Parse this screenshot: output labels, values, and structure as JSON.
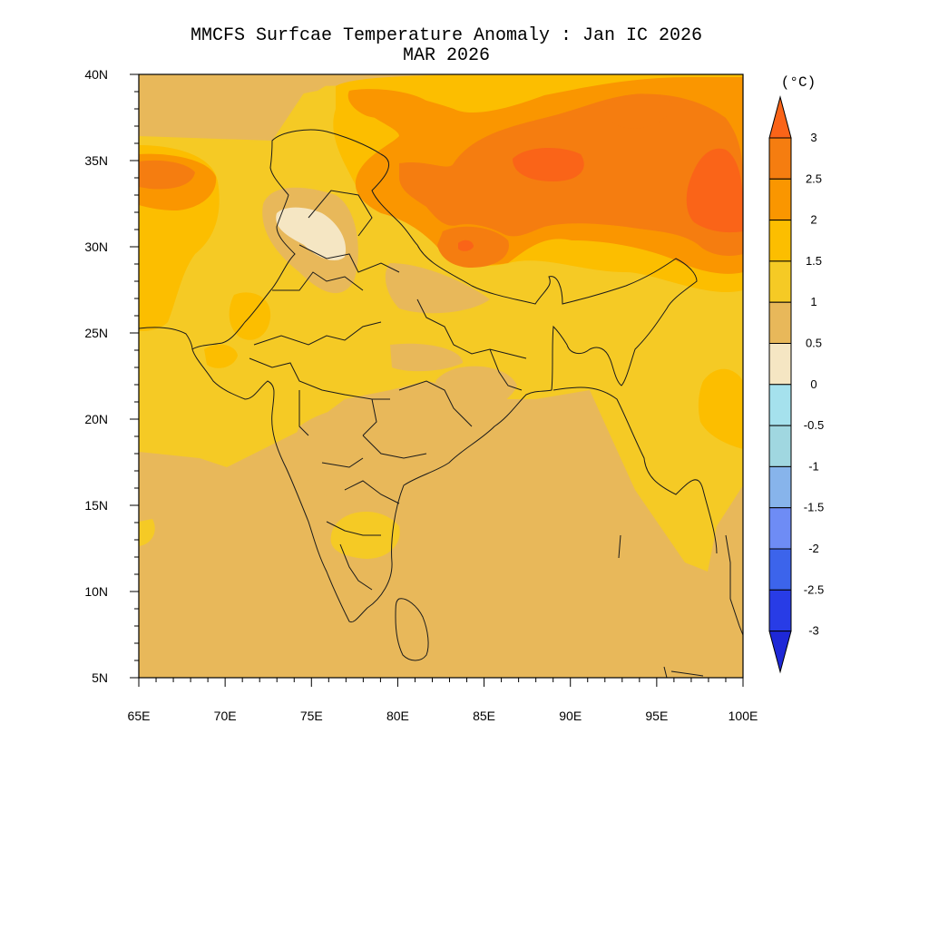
{
  "title": "MMCFS Surfcae Temperature Anomaly : Jan IC 2026",
  "subtitle": "MAR 2026",
  "map": {
    "lon_range": [
      65,
      100
    ],
    "lat_range": [
      5,
      40
    ],
    "lon_ticks": [
      "65E",
      "70E",
      "75E",
      "80E",
      "85E",
      "90E",
      "95E",
      "100E"
    ],
    "lat_ticks": [
      "5N",
      "10N",
      "15N",
      "20N",
      "25N",
      "30N",
      "35N",
      "40N"
    ],
    "background_class": "0.5 to 1"
  },
  "colorbar": {
    "unit": "(°C)",
    "labels": [
      "3",
      "2.5",
      "2",
      "1.5",
      "1",
      "0.5",
      "0",
      "-0.5",
      "-1",
      "-1.5",
      "-2",
      "-2.5",
      "-3"
    ],
    "colors": {
      "gt3": "#fa6418",
      "2.5-3": "#f57d10",
      "2-2.5": "#fa9600",
      "1.5-2": "#fcbe00",
      "1-1.5": "#f5ca25",
      "0.5-1": "#e8b85a",
      "0-0.5": "#f5e6c3",
      "-0.5-0": "#a5e1ed",
      "-1--0.5": "#a0d7e0",
      "-1.5--1": "#87b4eb",
      "-2--1.5": "#6e8cf5",
      "-2.5--2": "#3c64eb",
      "-3--2.5": "#283ce6",
      "lt-3": "#1e28d7"
    }
  }
}
